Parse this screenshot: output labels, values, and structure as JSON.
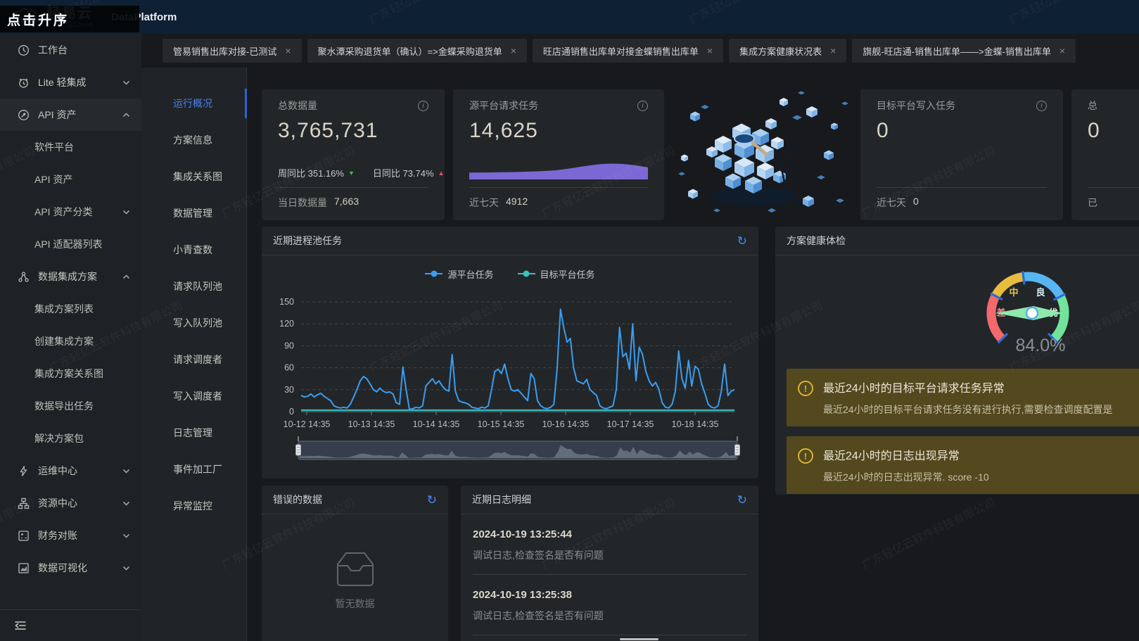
{
  "app": {
    "brand": "轻易云",
    "brand_sub": "QCloud",
    "title": "DataPlatform",
    "overlay_tooltip": "点击升序"
  },
  "watermark": {
    "text": "广东轻亿云软件科技有限公司"
  },
  "sidebar": {
    "items": [
      {
        "label": "工作台",
        "icon": "clock-icon"
      },
      {
        "label": "Lite 轻集成",
        "icon": "lite-icon",
        "chevron": "down"
      },
      {
        "label": "API 资产",
        "icon": "api-icon",
        "chevron": "up",
        "active": true,
        "children": [
          {
            "label": "软件平台"
          },
          {
            "label": "API 资产"
          },
          {
            "label": "API 资产分类",
            "chevron": "down"
          },
          {
            "label": "API 适配器列表"
          }
        ]
      },
      {
        "label": "数据集成方案",
        "icon": "integration-icon",
        "chevron": "up",
        "children": [
          {
            "label": "集成方案列表"
          },
          {
            "label": "创建集成方案"
          },
          {
            "label": "集成方案关系图"
          },
          {
            "label": "数据导出任务"
          },
          {
            "label": "解决方案包"
          }
        ]
      },
      {
        "label": "运维中心",
        "icon": "ops-icon",
        "chevron": "down"
      },
      {
        "label": "资源中心",
        "icon": "resource-icon",
        "chevron": "down"
      },
      {
        "label": "财务对账",
        "icon": "finance-icon",
        "chevron": "down"
      },
      {
        "label": "数据可视化",
        "icon": "viz-icon",
        "chevron": "down"
      }
    ]
  },
  "tabs": [
    {
      "label": "管易销售出库对接-已测试"
    },
    {
      "label": "聚水潭采购退货单（确认）=>金蝶采购退货单"
    },
    {
      "label": "旺店通销售出库单对接金蝶销售出库单"
    },
    {
      "label": "集成方案健康状况表"
    },
    {
      "label": "旗舰-旺店通-销售出库单——>金蝶-销售出库单"
    }
  ],
  "secondary_nav": {
    "active_index": 0,
    "items": [
      "运行概况",
      "方案信息",
      "集成关系图",
      "数据管理",
      "小青查数",
      "请求队列池",
      "写入队列池",
      "请求调度者",
      "写入调度者",
      "日志管理",
      "事件加工厂",
      "异常监控"
    ],
    "active_color": "#4a83f0"
  },
  "stat_cards": [
    {
      "kind": "trend",
      "label": "总数据量",
      "value": "3,765,731",
      "footer_label": "当日数据量",
      "footer_value": "7,663",
      "trends": [
        {
          "label": "周同比",
          "value": "351.16%",
          "direction": "down",
          "color": "#3fbf57"
        },
        {
          "label": "日同比",
          "value": "73.74%",
          "direction": "up",
          "color": "#e0566b"
        }
      ]
    },
    {
      "kind": "area",
      "label": "源平台请求任务",
      "value": "14,625",
      "footer_label": "近七天",
      "footer_value": "4912",
      "area_color": "#7c68d4"
    },
    {
      "kind": "plain",
      "label": "目标平台写入任务",
      "value": "0",
      "footer_label": "近七天",
      "footer_value": "0"
    },
    {
      "kind": "plain",
      "label": "总",
      "value": "0",
      "footer_label": "已",
      "footer_value": ""
    }
  ],
  "chart_card": {
    "title": "近期进程池任务",
    "legend": [
      {
        "name": "源平台任务",
        "color": "#3b9df0"
      },
      {
        "name": "目标平台任务",
        "color": "#35c3c0"
      }
    ]
  },
  "chart_data": {
    "type": "line",
    "title": "近期进程池任务",
    "x_labels": [
      "10-12 14:35",
      "10-13 14:35",
      "10-14 14:35",
      "10-15 14:35",
      "10-16 14:35",
      "10-17 14:35",
      "10-18 14:35"
    ],
    "ylim": [
      0,
      150
    ],
    "yticks": [
      0,
      30,
      60,
      90,
      120,
      150
    ],
    "grid": "dashed",
    "legend_position": "top-center",
    "has_brush": true,
    "series": [
      {
        "name": "源平台任务",
        "color": "#3b9df0",
        "values": [
          22,
          20,
          21,
          24,
          20,
          23,
          25,
          21,
          18,
          15,
          8,
          6,
          5,
          6,
          5,
          10,
          20,
          30,
          42,
          48,
          45,
          38,
          30,
          27,
          32,
          28,
          26,
          27,
          24,
          12,
          10,
          61,
          30,
          3,
          4,
          6,
          5,
          8,
          35,
          40,
          45,
          38,
          42,
          35,
          30,
          28,
          78,
          28,
          15,
          13,
          12,
          10,
          6,
          5,
          4,
          6,
          5,
          8,
          30,
          55,
          58,
          52,
          65,
          45,
          30,
          28,
          30,
          25,
          20,
          15,
          52,
          45,
          15,
          8,
          5,
          4,
          6,
          10,
          60,
          140,
          115,
          95,
          100,
          60,
          42,
          40,
          38,
          44,
          30,
          26,
          22,
          8,
          5,
          4,
          6,
          8,
          30,
          115,
          75,
          80,
          58,
          120,
          42,
          88,
          78,
          55,
          42,
          35,
          40,
          30,
          12,
          6,
          5,
          10,
          28,
          83,
          45,
          32,
          70,
          35,
          62,
          58,
          38,
          25,
          10,
          6,
          5,
          8,
          28,
          65,
          22,
          28,
          30
        ]
      },
      {
        "name": "目标平台任务",
        "color": "#35c3c0",
        "constant": 2
      }
    ]
  },
  "health": {
    "title": "方案健康体检",
    "gauge": {
      "value": "84.0%",
      "percent": 84,
      "segments": [
        {
          "label": "差",
          "color": "#f4696b",
          "label_color": "#f08a8a"
        },
        {
          "label": "中",
          "color": "#e8bd3e",
          "label_color": "#e8c04a"
        },
        {
          "label": "良",
          "color": "#57b6f2",
          "label_color": "#d3ecf8"
        },
        {
          "label": "优",
          "color": "#71e39c",
          "label_color": "#dff5e7"
        }
      ],
      "tick_color": "#2e6bd8",
      "needle_color": "#8fe8ac",
      "value_color": "#8b9095"
    },
    "alerts": [
      {
        "title": "最近24小时的目标平台请求任务异常",
        "desc": "最近24小时的目标平台请求任务没有进行执行,需要检查调度配置是"
      },
      {
        "title": "最近24小时的日志出现异常",
        "desc": "最近24小时的日志出现异常. score -10"
      }
    ]
  },
  "errors_card": {
    "title": "错误的数据",
    "empty_text": "暂无数据"
  },
  "logs_card": {
    "title": "近期日志明细",
    "entries": [
      {
        "time": "2024-10-19 13:25:44",
        "desc": "调试日志,检查签名是否有问题"
      },
      {
        "time": "2024-10-19 13:25:38",
        "desc": "调试日志,检查签名是否有问题"
      }
    ]
  }
}
